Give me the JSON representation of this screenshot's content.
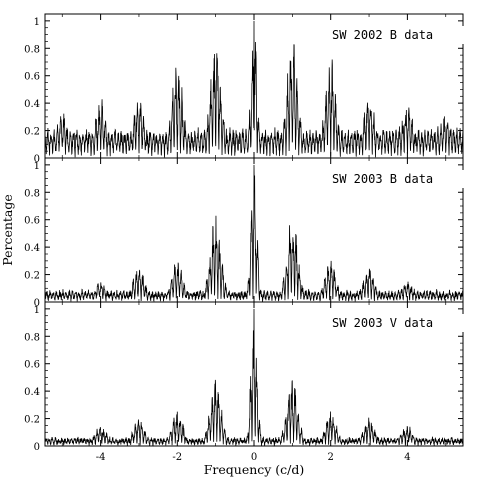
{
  "figure": {
    "x_axis_label": "Frequency (c/d)",
    "y_axis_label": "Percentage"
  },
  "chart_data": [
    {
      "type": "line",
      "title": "SW 2002 B data",
      "xlabel": "Frequency (c/d)",
      "ylabel": "Percentage",
      "xlim": [
        -5.45,
        5.45
      ],
      "ylim": [
        0,
        1.05
      ],
      "x_ticks": [
        -4,
        -2,
        0,
        2,
        4
      ],
      "y_ticks": [
        0,
        0.2,
        0.4,
        0.6,
        0.8,
        1
      ],
      "y_tick_labels": [
        "0",
        "0.2",
        "0.4",
        "0.6",
        "0.8",
        "1"
      ],
      "grid": false,
      "baseline": 0.18,
      "noise": 0.1,
      "peaks": [
        {
          "x": 0,
          "height": 1.0
        },
        {
          "x": -1,
          "height": 0.88
        },
        {
          "x": 1,
          "height": 0.88
        },
        {
          "x": -2,
          "height": 0.7
        },
        {
          "x": 2,
          "height": 0.7
        },
        {
          "x": -3,
          "height": 0.46
        },
        {
          "x": 3,
          "height": 0.46
        },
        {
          "x": -4,
          "height": 0.4
        },
        {
          "x": 4,
          "height": 0.4
        },
        {
          "x": -5,
          "height": 0.32
        },
        {
          "x": 5,
          "height": 0.32
        }
      ]
    },
    {
      "type": "line",
      "title": "SW 2003 B data",
      "xlabel": "Frequency (c/d)",
      "ylabel": "Percentage",
      "xlim": [
        -5.45,
        5.45
      ],
      "ylim": [
        0,
        1.05
      ],
      "x_ticks": [
        -4,
        -2,
        0,
        2,
        4
      ],
      "y_ticks": [
        0,
        0.2,
        0.4,
        0.6,
        0.8,
        1
      ],
      "y_tick_labels": [
        "0",
        "0.2",
        "0.4",
        "0.6",
        "0.8",
        "1"
      ],
      "grid": false,
      "baseline": 0.06,
      "noise": 0.06,
      "peaks": [
        {
          "x": 0,
          "height": 1.0
        },
        {
          "x": -1,
          "height": 0.64
        },
        {
          "x": 1,
          "height": 0.64
        },
        {
          "x": -2,
          "height": 0.3
        },
        {
          "x": 2,
          "height": 0.3
        },
        {
          "x": -3,
          "height": 0.25
        },
        {
          "x": 3,
          "height": 0.25
        },
        {
          "x": -4,
          "height": 0.14
        },
        {
          "x": 4,
          "height": 0.14
        }
      ]
    },
    {
      "type": "line",
      "title": "SW 2003 V data",
      "xlabel": "Frequency (c/d)",
      "ylabel": "Percentage",
      "xlim": [
        -5.45,
        5.45
      ],
      "ylim": [
        0,
        1.05
      ],
      "x_ticks": [
        -4,
        -2,
        0,
        2,
        4
      ],
      "x_tick_labels": [
        "-4",
        "-2",
        "0",
        "2",
        "4"
      ],
      "y_ticks": [
        0,
        0.2,
        0.4,
        0.6,
        0.8,
        1
      ],
      "y_tick_labels": [
        "0",
        "0.2",
        "0.4",
        "0.6",
        "0.8",
        "1"
      ],
      "grid": false,
      "baseline": 0.04,
      "noise": 0.05,
      "peaks": [
        {
          "x": 0,
          "height": 1.0
        },
        {
          "x": -1,
          "height": 0.5
        },
        {
          "x": 1,
          "height": 0.5
        },
        {
          "x": -2,
          "height": 0.25
        },
        {
          "x": 2,
          "height": 0.25
        },
        {
          "x": -3,
          "height": 0.2
        },
        {
          "x": 3,
          "height": 0.2
        },
        {
          "x": -4,
          "height": 0.14
        },
        {
          "x": 4,
          "height": 0.14
        }
      ]
    }
  ]
}
